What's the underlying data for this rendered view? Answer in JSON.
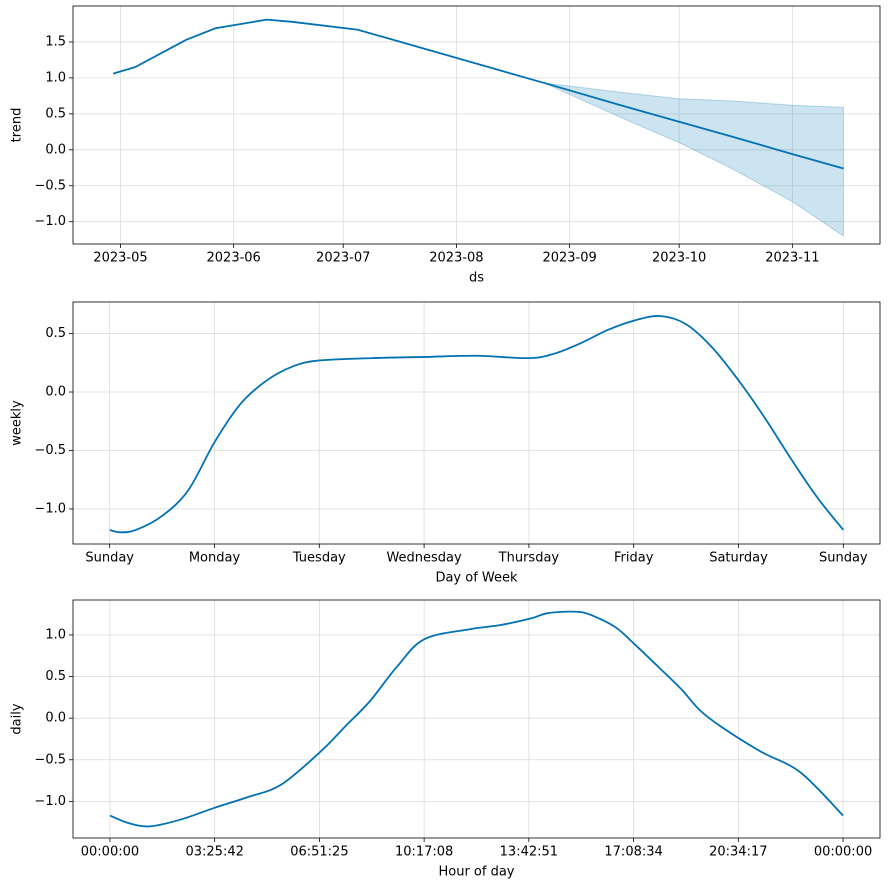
{
  "chart_data": [
    {
      "type": "line",
      "xlabel": "ds",
      "ylabel": "trend",
      "color": "#0072B2",
      "grid": true,
      "x": [
        "2023-04-29",
        "2023-05-05",
        "2023-05-19",
        "2023-05-27",
        "2023-06-10",
        "2023-06-17",
        "2023-07-05",
        "2023-08-25",
        "2023-09-15",
        "2023-10-01",
        "2023-10-15",
        "2023-11-01",
        "2023-11-15"
      ],
      "values": [
        1.06,
        1.15,
        1.53,
        1.69,
        1.81,
        1.78,
        1.67,
        0.93,
        0.62,
        0.39,
        0.19,
        -0.06,
        -0.26
      ],
      "band": {
        "upper": [
          null,
          null,
          null,
          null,
          null,
          null,
          null,
          0.93,
          0.8,
          0.71,
          0.68,
          0.62,
          0.59
        ],
        "lower": [
          null,
          null,
          null,
          null,
          null,
          null,
          null,
          0.93,
          0.45,
          0.1,
          -0.25,
          -0.72,
          -1.2
        ]
      },
      "xlim": [
        "2023-04-18",
        "2023-11-25"
      ],
      "xticks": [
        "2023-05",
        "2023-06",
        "2023-07",
        "2023-08",
        "2023-09",
        "2023-10",
        "2023-11"
      ],
      "ylim": [
        -1.31,
        2.0
      ],
      "yticks": [
        {
          "value": -1,
          "label": "−1.0"
        },
        {
          "value": -0.5,
          "label": "−0.5"
        },
        {
          "value": 0,
          "label": "0.0"
        },
        0.5,
        {
          "value": 1,
          "label": "1.0"
        },
        1.5
      ]
    },
    {
      "type": "line",
      "xlabel": "Day of Week",
      "ylabel": "weekly",
      "color": "#0072B2",
      "grid": true,
      "x": [
        0,
        0.1,
        0.25,
        0.5,
        0.75,
        1,
        1.25,
        1.5,
        1.75,
        2,
        2.5,
        3,
        3.5,
        4,
        4.25,
        4.5,
        4.75,
        5,
        5.25,
        5.5,
        5.75,
        6,
        6.25,
        6.5,
        6.75,
        7
      ],
      "values": [
        -1.18,
        -1.2,
        -1.18,
        -1.06,
        -0.84,
        -0.43,
        -0.1,
        0.1,
        0.22,
        0.27,
        0.29,
        0.3,
        0.31,
        0.29,
        0.33,
        0.42,
        0.53,
        0.61,
        0.65,
        0.58,
        0.38,
        0.1,
        -0.22,
        -0.57,
        -0.9,
        -1.18
      ],
      "xlim": [
        -0.35,
        7.35
      ],
      "xticks": [
        {
          "value": 0,
          "label": "Sunday"
        },
        {
          "value": 1,
          "label": "Monday"
        },
        {
          "value": 2,
          "label": "Tuesday"
        },
        {
          "value": 3,
          "label": "Wednesday"
        },
        {
          "value": 4,
          "label": "Thursday"
        },
        {
          "value": 5,
          "label": "Friday"
        },
        {
          "value": 6,
          "label": "Saturday"
        },
        {
          "value": 7,
          "label": "Sunday"
        }
      ],
      "ylim": [
        -1.3,
        0.77
      ],
      "yticks": [
        {
          "value": -1,
          "label": "−1.0"
        },
        {
          "value": -0.5,
          "label": "−0.5"
        },
        {
          "value": 0,
          "label": "0.0"
        },
        0.5
      ]
    },
    {
      "type": "line",
      "xlabel": "Hour of day",
      "ylabel": "daily",
      "color": "#0072B2",
      "grid": true,
      "x": [
        0,
        0.6,
        1.3,
        2.3,
        3.4,
        4.5,
        5.6,
        6.9,
        7.7,
        8.5,
        9.4,
        10.3,
        11.8,
        12.8,
        13.8,
        14.3,
        15,
        15.5,
        16,
        16.6,
        17.2,
        18,
        18.7,
        19.3,
        20,
        21.3,
        22.6,
        24
      ],
      "values": [
        -1.17,
        -1.26,
        -1.3,
        -1.22,
        -1.08,
        -0.95,
        -0.8,
        -0.4,
        -0.1,
        0.2,
        0.62,
        0.95,
        1.07,
        1.12,
        1.2,
        1.26,
        1.28,
        1.27,
        1.2,
        1.08,
        0.88,
        0.6,
        0.35,
        0.1,
        -0.1,
        -0.4,
        -0.65,
        -1.17
      ],
      "xlim": [
        -1.21,
        25.21
      ],
      "xticks": [
        {
          "value": 0,
          "label": "00:00:00"
        },
        {
          "value": 3.42857,
          "label": "03:25:42"
        },
        {
          "value": 6.85714,
          "label": "06:51:25"
        },
        {
          "value": 10.28571,
          "label": "10:17:08"
        },
        {
          "value": 13.71429,
          "label": "13:42:51"
        },
        {
          "value": 17.14286,
          "label": "17:08:34"
        },
        {
          "value": 20.57143,
          "label": "20:34:17"
        },
        {
          "value": 24,
          "label": "00:00:00"
        }
      ],
      "ylim": [
        -1.44,
        1.42
      ],
      "yticks": [
        {
          "value": -1,
          "label": "−1.0"
        },
        {
          "value": -0.5,
          "label": "−0.5"
        },
        {
          "value": 0,
          "label": "0.0"
        },
        0.5,
        {
          "value": 1,
          "label": "1.0"
        }
      ]
    }
  ]
}
